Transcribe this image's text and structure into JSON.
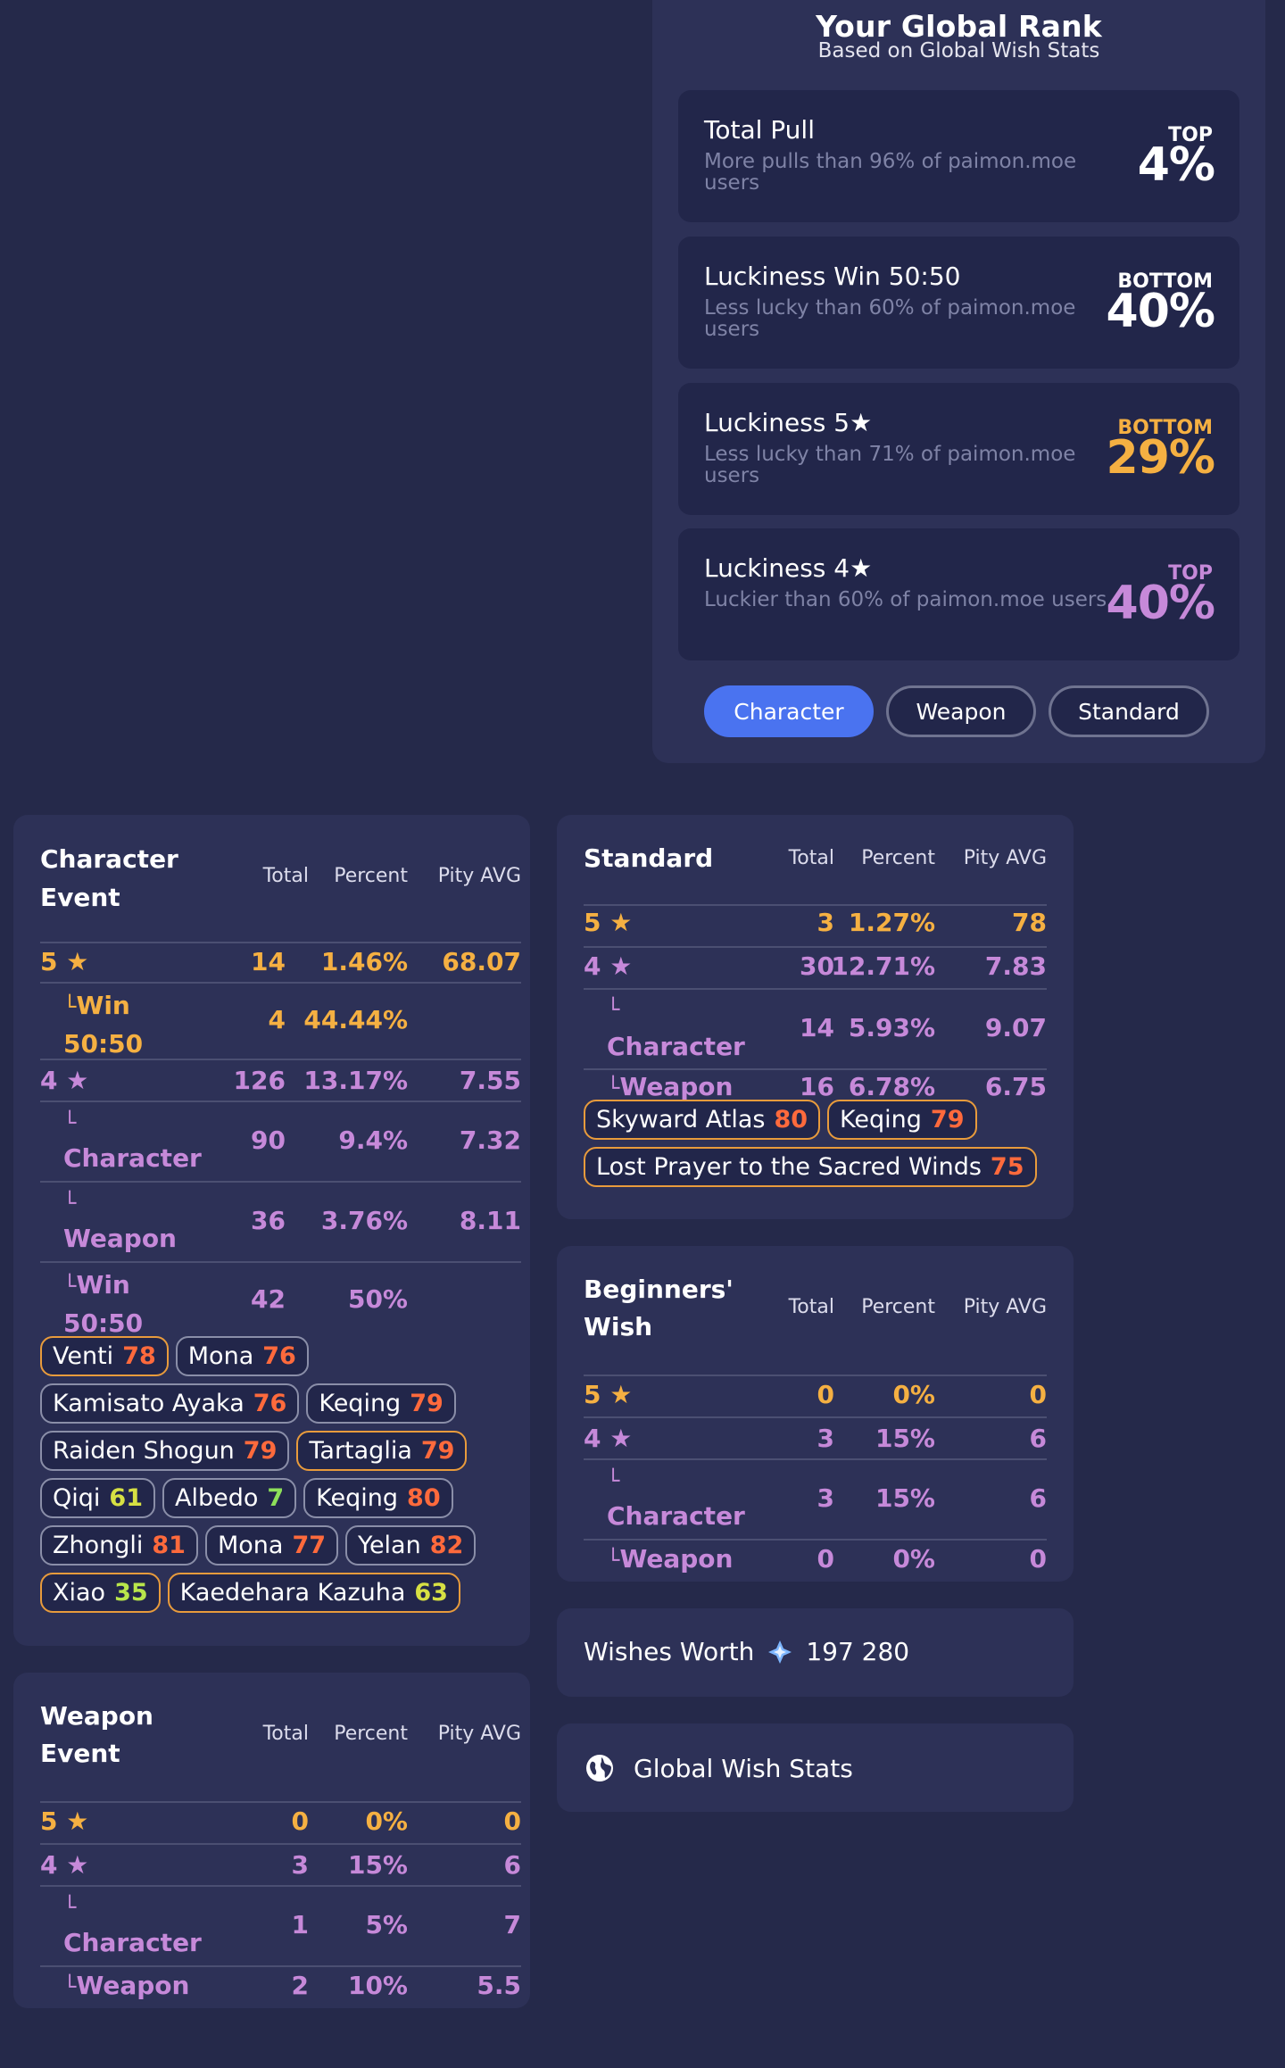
{
  "rank": {
    "title": "Your Global Rank",
    "subtitle": "Based on Global Wish Stats",
    "cards": [
      {
        "title": "Total Pull",
        "desc": "More pulls than 96% of paimon.moe users",
        "label": "TOP",
        "value": "4%",
        "color": "#ffffff"
      },
      {
        "title": "Luckiness Win 50:50",
        "desc": "Less lucky than 60% of paimon.moe users",
        "label": "BOTTOM",
        "value": "40%",
        "color": "#ffffff"
      },
      {
        "title": "Luckiness 5★",
        "desc": "Less lucky than 71% of paimon.moe users",
        "label": "BOTTOM",
        "value": "29%",
        "color": "#f5b042"
      },
      {
        "title": "Luckiness 4★",
        "desc": "Luckier than 60% of paimon.moe users",
        "label": "TOP",
        "value": "40%",
        "color": "#c689d9"
      }
    ],
    "tabs": [
      "Character",
      "Weapon",
      "Standard"
    ],
    "active_tab": "Character"
  },
  "columns": {
    "total": "Total",
    "percent": "Percent",
    "pity": "Pity AVG"
  },
  "char_event": {
    "title_1": "Character",
    "title_2": "Event",
    "rows": [
      {
        "name": "5 ★",
        "total": "14",
        "percent": "1.46%",
        "pity": "68.07"
      },
      {
        "prefix": "└",
        "name1": "Win",
        "name2": "50:50",
        "total": "4",
        "percent": "44.44%",
        "pity": ""
      },
      {
        "name": "4 ★",
        "total": "126",
        "percent": "13.17%",
        "pity": "7.55"
      },
      {
        "prefix": "└",
        "name": "Character",
        "total": "90",
        "percent": "9.4%",
        "pity": "7.32"
      },
      {
        "prefix": "└",
        "name": "Weapon",
        "total": "36",
        "percent": "3.76%",
        "pity": "8.11"
      },
      {
        "prefix": "└",
        "name1": "Win",
        "name2": "50:50",
        "total": "42",
        "percent": "50%",
        "pity": ""
      }
    ],
    "tags": [
      [
        {
          "name": "Venti",
          "num": "78",
          "orange": true
        },
        {
          "name": "Mona",
          "num": "76",
          "orange": false
        }
      ],
      [
        {
          "name": "Kamisato Ayaka",
          "num": "76",
          "orange": false
        },
        {
          "name": "Keqing",
          "num": "79",
          "orange": false
        }
      ],
      [
        {
          "name": "Raiden Shogun",
          "num": "79",
          "orange": false
        },
        {
          "name": "Tartaglia",
          "num": "79",
          "orange": true
        }
      ],
      [
        {
          "name": "Qiqi",
          "num": "61",
          "orange": false
        },
        {
          "name": "Albedo",
          "num": "7",
          "orange": false
        },
        {
          "name": "Keqing",
          "num": "80",
          "orange": false
        }
      ],
      [
        {
          "name": "Zhongli",
          "num": "81",
          "orange": false
        },
        {
          "name": "Mona",
          "num": "77",
          "orange": false
        },
        {
          "name": "Yelan",
          "num": "82",
          "orange": false
        }
      ],
      [
        {
          "name": "Xiao",
          "num": "35",
          "orange": true
        },
        {
          "name": "Kaedehara Kazuha",
          "num": "63",
          "orange": true
        }
      ]
    ]
  },
  "weapon_event": {
    "title_1": "Weapon",
    "title_2": "Event",
    "rows": [
      {
        "name": "5 ★",
        "total": "0",
        "percent": "0%",
        "pity": "0"
      },
      {
        "name": "4 ★",
        "total": "3",
        "percent": "15%",
        "pity": "6"
      },
      {
        "prefix": "└",
        "name": "Character",
        "total": "1",
        "percent": "5%",
        "pity": "7"
      },
      {
        "prefix": "└",
        "name": "Weapon",
        "total": "2",
        "percent": "10%",
        "pity": "5.5"
      }
    ]
  },
  "standard": {
    "title": "Standard",
    "rows": [
      {
        "name": "5 ★",
        "total": "3",
        "percent": "1.27%",
        "pity": "78"
      },
      {
        "name": "4 ★",
        "total": "30",
        "percent": "12.71%",
        "pity": "7.83"
      },
      {
        "prefix": "└",
        "name": "Character",
        "total": "14",
        "percent": "5.93%",
        "pity": "9.07"
      },
      {
        "prefix": "└",
        "name": "Weapon",
        "total": "16",
        "percent": "6.78%",
        "pity": "6.75"
      }
    ],
    "tags": [
      [
        {
          "name": "Skyward Atlas",
          "num": "80",
          "orange": true
        },
        {
          "name": "Keqing",
          "num": "79",
          "orange": true
        }
      ],
      [
        {
          "name": "Lost Prayer to the Sacred Winds",
          "num": "75",
          "orange": true
        }
      ]
    ]
  },
  "beginners": {
    "title_1": "Beginners'",
    "title_2": "Wish",
    "rows": [
      {
        "name": "5 ★",
        "total": "0",
        "percent": "0%",
        "pity": "0"
      },
      {
        "name": "4 ★",
        "total": "3",
        "percent": "15%",
        "pity": "6"
      },
      {
        "prefix": "└",
        "name": "Character",
        "total": "3",
        "percent": "15%",
        "pity": "6"
      },
      {
        "prefix": "└",
        "name": "Weapon",
        "total": "0",
        "percent": "0%",
        "pity": "0"
      }
    ]
  },
  "wishes_worth": {
    "label": "Wishes Worth",
    "value": "197 280"
  },
  "global_stats": {
    "label": "Global Wish Stats"
  }
}
